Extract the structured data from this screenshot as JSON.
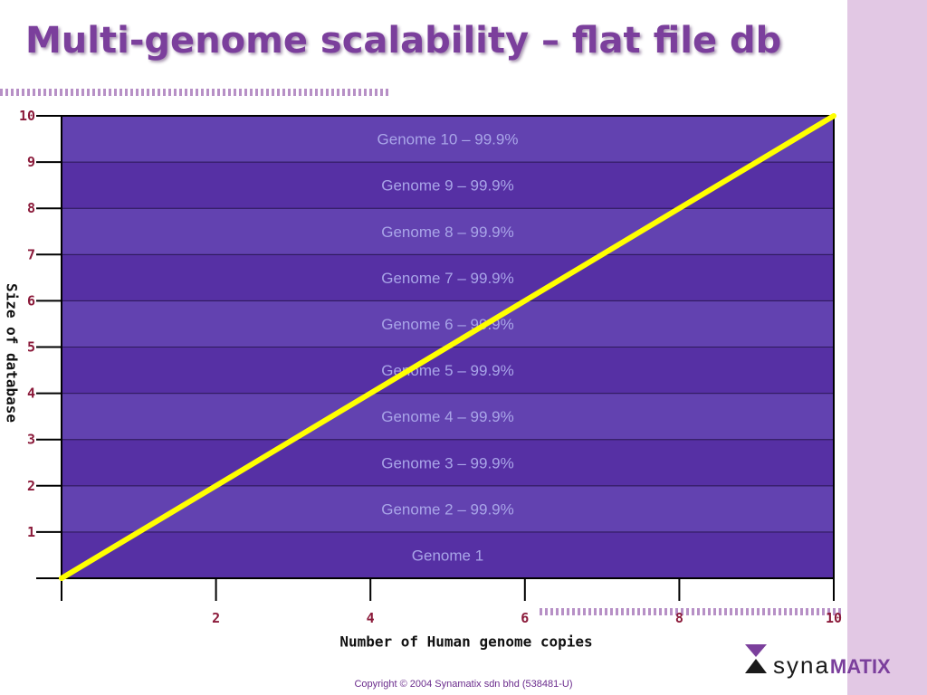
{
  "slide": {
    "title": "Multi-genome scalability – flat file db",
    "copyright": "Copyright © 2004 Synamatix sdn bhd (538481-U)",
    "logo_part1": "syna",
    "logo_part2": "MATIX"
  },
  "colors": {
    "title": "#7b3f9c",
    "band_dark": "#5630a4",
    "band_light": "#6242b0",
    "line": "#ffff00",
    "band_text": "#a9a5e8",
    "tick_text": "#8b1a3a",
    "side_strip": "#e2c8e4",
    "dots": "#b790c6"
  },
  "chart_data": {
    "type": "line",
    "xlabel": "Number of Human genome copies",
    "ylabel": "Size of database",
    "xlim": [
      0,
      10
    ],
    "ylim": [
      0,
      10
    ],
    "x_ticks": [
      2,
      4,
      6,
      8,
      10
    ],
    "y_ticks": [
      1,
      2,
      3,
      4,
      5,
      6,
      7,
      8,
      9,
      10
    ],
    "series": [
      {
        "x": [
          0,
          10
        ],
        "y": [
          0,
          10
        ]
      }
    ],
    "bands": [
      {
        "label": "Genome 1",
        "from": 0,
        "to": 1
      },
      {
        "label": "Genome 2 – 99.9%",
        "from": 1,
        "to": 2
      },
      {
        "label": "Genome 3 – 99.9%",
        "from": 2,
        "to": 3
      },
      {
        "label": "Genome 4 – 99.9%",
        "from": 3,
        "to": 4
      },
      {
        "label": "Genome 5 – 99.9%",
        "from": 4,
        "to": 5
      },
      {
        "label": "Genome 6 – 99.9%",
        "from": 5,
        "to": 6
      },
      {
        "label": "Genome 7 – 99.9%",
        "from": 6,
        "to": 7
      },
      {
        "label": "Genome 8 – 99.9%",
        "from": 7,
        "to": 8
      },
      {
        "label": "Genome 9 – 99.9%",
        "from": 8,
        "to": 9
      },
      {
        "label": "Genome 10 – 99.9%",
        "from": 9,
        "to": 10
      }
    ]
  }
}
